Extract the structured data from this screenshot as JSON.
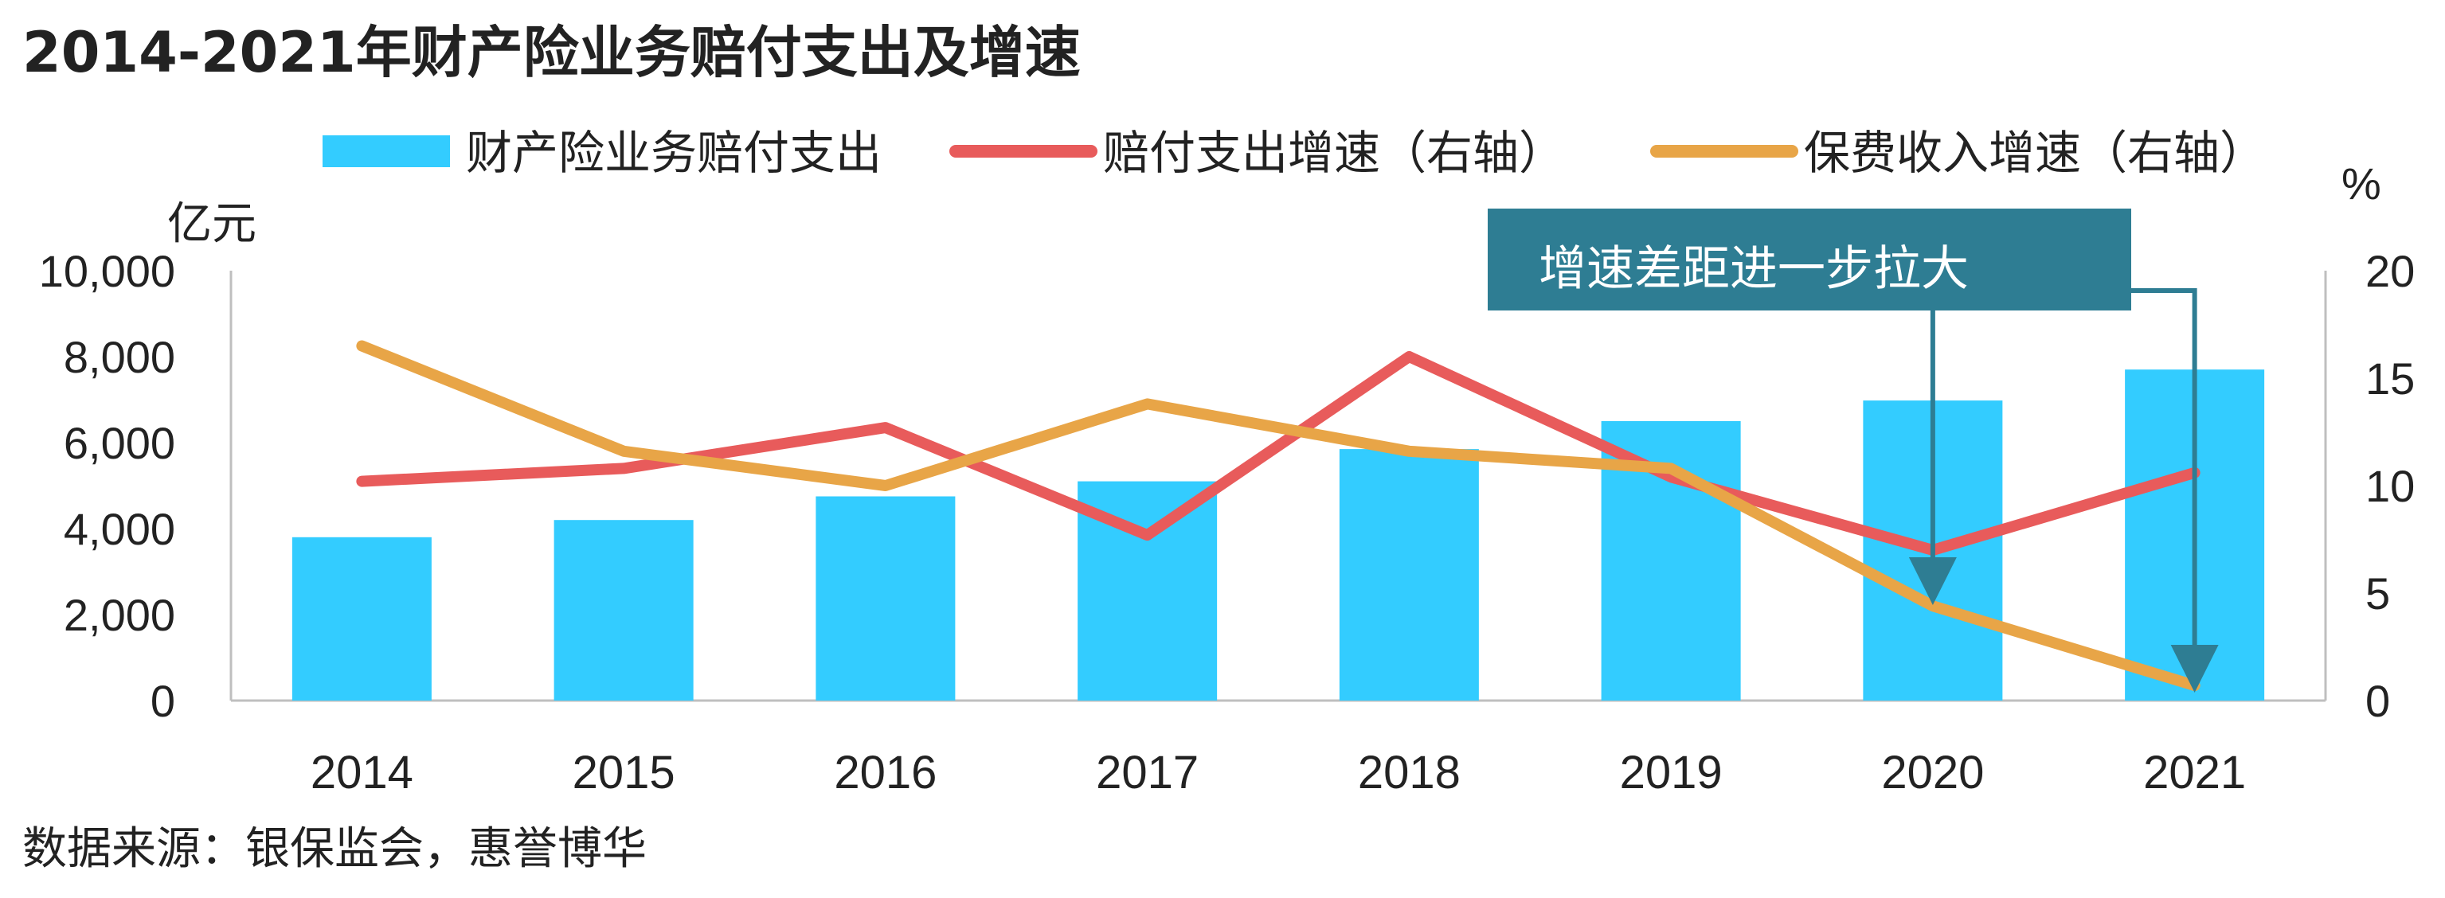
{
  "chart_data": {
    "type": "bar",
    "title": "2014-2021年财产险业务赔付支出及增速",
    "source": "数据来源：银保监会，惠誉博华",
    "categories": [
      "2014",
      "2015",
      "2016",
      "2017",
      "2018",
      "2019",
      "2020",
      "2021"
    ],
    "left_axis": {
      "unit": "亿元",
      "ylim": [
        0,
        10000
      ],
      "ticks": [
        "0",
        "2,000",
        "4,000",
        "6,000",
        "8,000",
        "10,000"
      ],
      "tick_values": [
        0,
        2000,
        4000,
        6000,
        8000,
        10000
      ]
    },
    "right_axis": {
      "unit": "%",
      "ylim": [
        0,
        20
      ],
      "ticks": [
        "0",
        "5",
        "10",
        "15",
        "20"
      ],
      "tick_values": [
        0,
        5,
        10,
        15,
        20
      ]
    },
    "series": [
      {
        "name": "财产险业务赔付支出",
        "kind": "bar",
        "axis": "left",
        "color": "#33CCFF",
        "values": [
          3800,
          4200,
          4750,
          5100,
          5850,
          6500,
          6980,
          7700
        ]
      },
      {
        "name": "赔付支出增速（右轴）",
        "kind": "line",
        "axis": "right",
        "color": "#E85B5B",
        "values": [
          10.2,
          10.8,
          12.7,
          7.7,
          16.0,
          10.4,
          7.0,
          10.6
        ]
      },
      {
        "name": "保费收入增速（右轴）",
        "kind": "line",
        "axis": "right",
        "color": "#E8A547",
        "values": [
          16.5,
          11.6,
          10.0,
          13.8,
          11.6,
          10.8,
          4.4,
          0.7
        ]
      }
    ],
    "annotation": {
      "text": "增速差距进一步拉大",
      "color": "#2E7D93",
      "targets": [
        "2020",
        "2021"
      ]
    },
    "grid": false,
    "legend": "top"
  }
}
